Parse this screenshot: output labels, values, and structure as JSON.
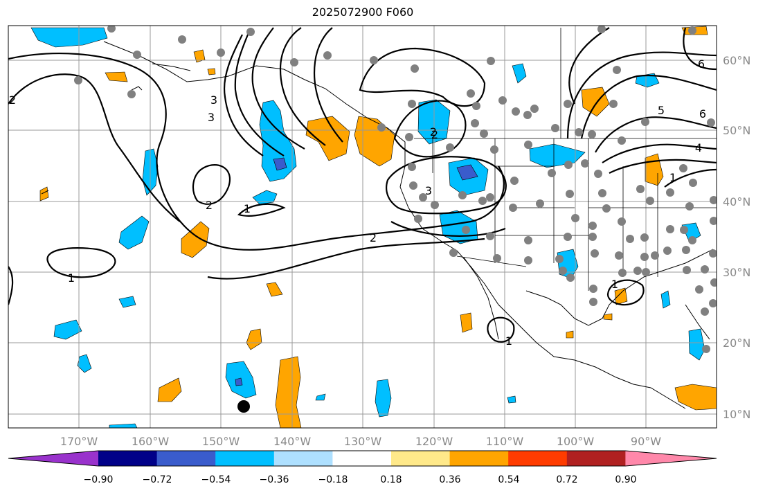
{
  "title": "2025072900 F060",
  "lon_labels": [
    "170°W",
    "160°W",
    "150°W",
    "140°W",
    "130°W",
    "120°W",
    "110°W",
    "100°W",
    "90°W"
  ],
  "lat_labels": [
    "60°N",
    "50°N",
    "40°N",
    "30°N",
    "20°N",
    "10°N"
  ],
  "colorbar": {
    "ticks": [
      "−0.90",
      "−0.72",
      "−0.54",
      "−0.36",
      "−0.18",
      "0.18",
      "0.36",
      "0.54",
      "0.72",
      "0.90"
    ],
    "colors": [
      "#9932cc",
      "#000088",
      "#3a5ccc",
      "#00bfff",
      "#aee0ff",
      "#ffffff",
      "#ffe98a",
      "#ffa500",
      "#ff3c00",
      "#b02020",
      "#ff88aa"
    ]
  },
  "contour_labels": [
    "1",
    "1",
    "1",
    "1",
    "1",
    "2",
    "2",
    "2",
    "2",
    "3",
    "3",
    "3",
    "4",
    "5",
    "6",
    "6",
    "2"
  ],
  "colors": {
    "blue_anomaly": "#00bfff",
    "dark_blue_anomaly": "#3a5ccc",
    "orange_anomaly": "#ffa500",
    "station_dot": "#808080",
    "marker": "#000000"
  }
}
